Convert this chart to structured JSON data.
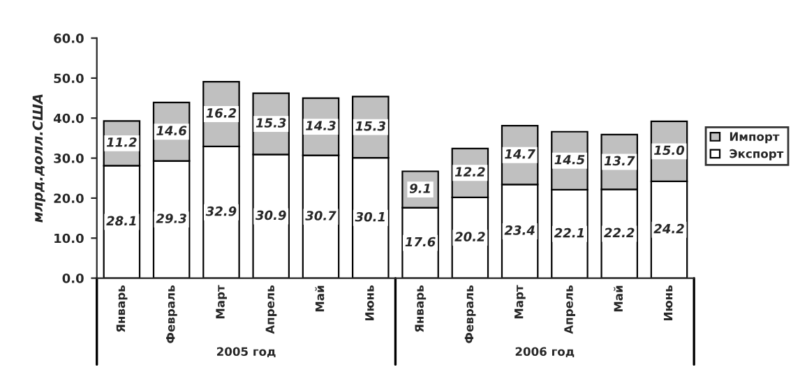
{
  "chart_data": {
    "type": "bar",
    "stacked": true,
    "ylabel": "млрд.долл.США",
    "categories": [
      "Январь",
      "Февраль",
      "Март",
      "Апрель",
      "Май",
      "Июнь",
      "Январь",
      "Февраль",
      "Март",
      "Апрель",
      "Май",
      "Июнь"
    ],
    "series": [
      {
        "name": "Экспорт",
        "color": "#ffffff",
        "values": [
          28.1,
          29.3,
          32.9,
          30.9,
          30.7,
          30.1,
          17.6,
          20.2,
          23.4,
          22.1,
          22.2,
          24.2
        ],
        "value_labels": [
          "28.1",
          "29.3",
          "32.9",
          "30.9",
          "30.7",
          "30.1",
          "17.6",
          "20.2",
          "23.4",
          "22.1",
          "22.2",
          "24.2"
        ]
      },
      {
        "name": "Импорт",
        "color": "#c0c0c0",
        "values": [
          11.2,
          14.6,
          16.2,
          15.3,
          14.3,
          15.3,
          9.1,
          12.2,
          14.7,
          14.5,
          13.7,
          15.0
        ],
        "value_labels": [
          "11.2",
          "14.6",
          "16.2",
          "15.3",
          "14.3",
          "15.3",
          "9.1",
          "12.2",
          "14.7",
          "14.5",
          "13.7",
          "15.0"
        ]
      }
    ],
    "ylim": [
      0,
      60
    ],
    "yticks": [
      {
        "value": 0,
        "label": "0.0"
      },
      {
        "value": 10,
        "label": "10.0"
      },
      {
        "value": 20,
        "label": "20.0"
      },
      {
        "value": 30,
        "label": "30.0"
      },
      {
        "value": 40,
        "label": "40.0"
      },
      {
        "value": 50,
        "label": "50.0"
      },
      {
        "value": 60,
        "label": "60.0"
      }
    ],
    "annotations": [
      "2005 год",
      "2006 год"
    ],
    "legend": "right",
    "grid": false
  }
}
